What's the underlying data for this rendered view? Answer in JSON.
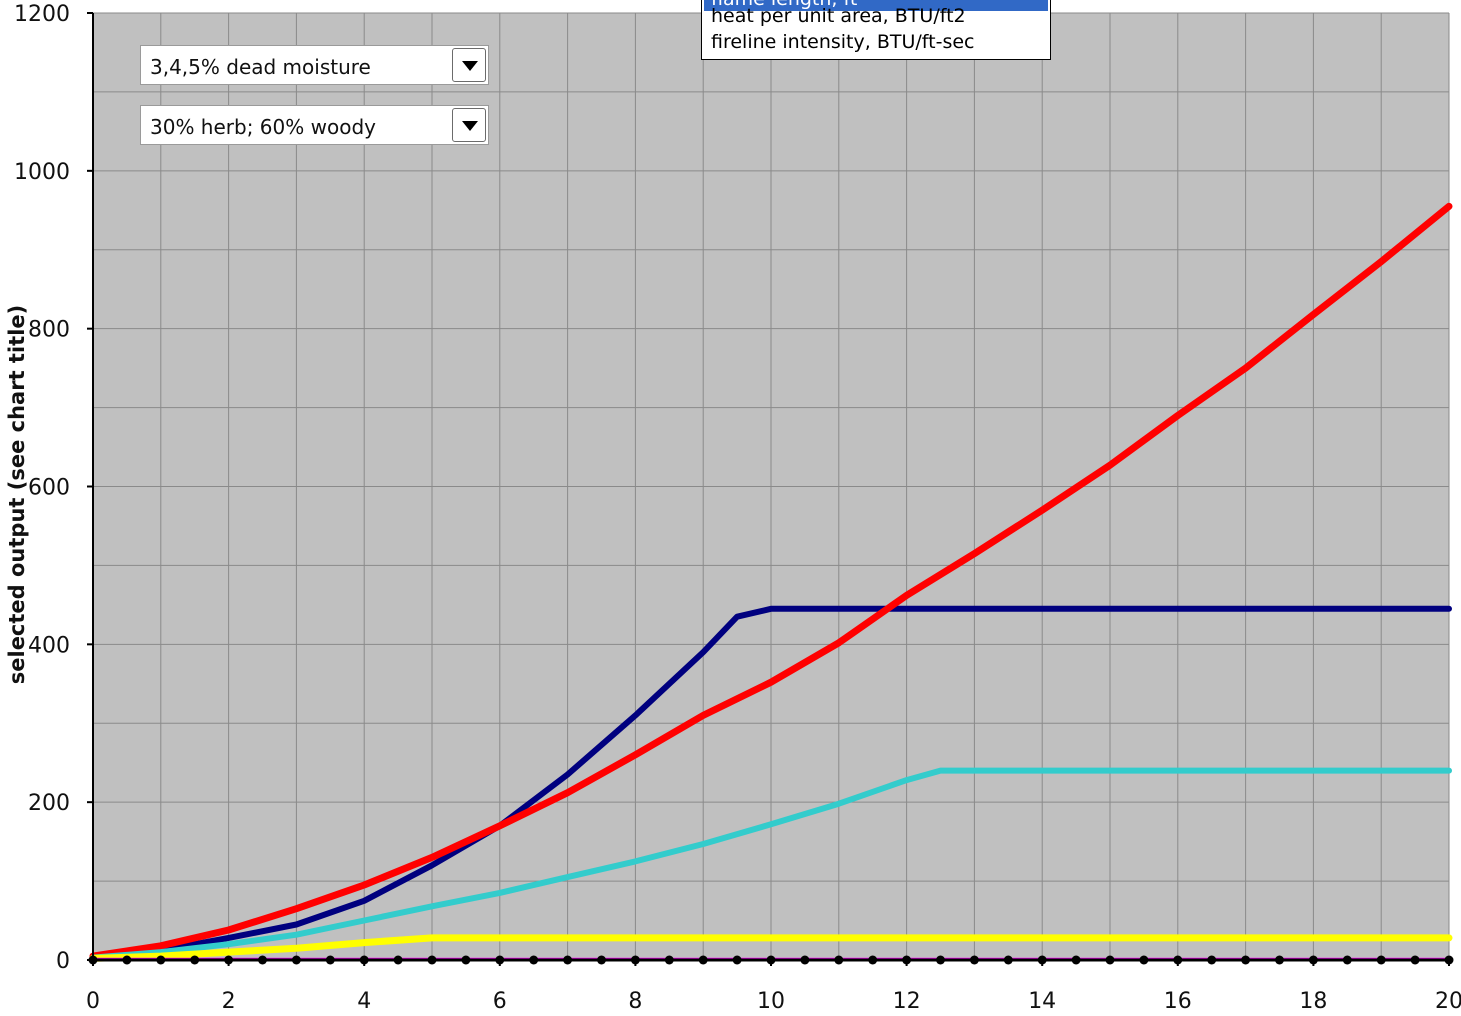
{
  "controls": {
    "moisture_select": "3,4,5% dead moisture",
    "herb_select": "30% herb; 60% woody"
  },
  "dropdown": {
    "options": [
      {
        "label": "flame length, ft",
        "selected": true
      },
      {
        "label": "heat per unit area, BTU/ft2",
        "selected": false
      },
      {
        "label": "fireline intensity, BTU/ft-sec",
        "selected": false
      }
    ]
  },
  "chart_data": {
    "type": "line",
    "title": "",
    "xlabel": "",
    "ylabel": "selected output  (see chart title)",
    "xlim": [
      0,
      20
    ],
    "ylim": [
      0,
      1200
    ],
    "xticks": [
      0,
      2,
      4,
      6,
      8,
      10,
      12,
      14,
      16,
      18,
      20
    ],
    "yticks": [
      0,
      200,
      400,
      600,
      800,
      1000,
      1200
    ],
    "grid": true,
    "plot_background": "#c0c0c0",
    "series": [
      {
        "color": "#00007f",
        "width": 6,
        "points": [
          [
            0,
            5
          ],
          [
            1,
            12
          ],
          [
            2,
            28
          ],
          [
            3,
            45
          ],
          [
            4,
            75
          ],
          [
            5,
            120
          ],
          [
            6,
            170
          ],
          [
            7,
            235
          ],
          [
            8,
            310
          ],
          [
            9,
            390
          ],
          [
            9.5,
            435
          ],
          [
            10,
            445
          ],
          [
            12,
            445
          ],
          [
            14,
            445
          ],
          [
            16,
            445
          ],
          [
            18,
            445
          ],
          [
            20,
            445
          ]
        ]
      },
      {
        "color": "#ff0000",
        "width": 7,
        "points": [
          [
            0,
            5
          ],
          [
            1,
            18
          ],
          [
            2,
            38
          ],
          [
            3,
            65
          ],
          [
            4,
            95
          ],
          [
            5,
            130
          ],
          [
            6,
            170
          ],
          [
            7,
            212
          ],
          [
            8,
            260
          ],
          [
            9,
            310
          ],
          [
            10,
            352
          ],
          [
            11,
            402
          ],
          [
            12,
            462
          ],
          [
            13,
            515
          ],
          [
            14,
            570
          ],
          [
            15,
            627
          ],
          [
            16,
            690
          ],
          [
            17,
            750
          ],
          [
            18,
            818
          ],
          [
            19,
            885
          ],
          [
            20,
            955
          ]
        ]
      },
      {
        "color": "#33cccc",
        "width": 6,
        "points": [
          [
            0,
            3
          ],
          [
            1,
            10
          ],
          [
            2,
            20
          ],
          [
            3,
            32
          ],
          [
            4,
            50
          ],
          [
            5,
            68
          ],
          [
            6,
            85
          ],
          [
            7,
            105
          ],
          [
            8,
            125
          ],
          [
            9,
            147
          ],
          [
            10,
            172
          ],
          [
            11,
            198
          ],
          [
            12,
            228
          ],
          [
            12.5,
            240
          ],
          [
            14,
            240
          ],
          [
            16,
            240
          ],
          [
            18,
            240
          ],
          [
            20,
            240
          ]
        ]
      },
      {
        "color": "#ffff00",
        "width": 7,
        "points": [
          [
            0,
            2
          ],
          [
            1,
            5
          ],
          [
            2,
            10
          ],
          [
            3,
            15
          ],
          [
            4,
            22
          ],
          [
            5,
            28
          ],
          [
            6,
            28
          ],
          [
            8,
            28
          ],
          [
            10,
            28
          ],
          [
            12,
            28
          ],
          [
            14,
            28
          ],
          [
            16,
            28
          ],
          [
            18,
            28
          ],
          [
            20,
            28
          ]
        ]
      },
      {
        "color": "#ff00ff",
        "width": 3,
        "points": [
          [
            0,
            1
          ],
          [
            20,
            1
          ]
        ]
      },
      {
        "color": "#000000",
        "width": 3,
        "marker": "circle",
        "points": [
          [
            0,
            0
          ],
          [
            0.5,
            0
          ],
          [
            1,
            0
          ],
          [
            1.5,
            0
          ],
          [
            2,
            0
          ],
          [
            2.5,
            0
          ],
          [
            3,
            0
          ],
          [
            3.5,
            0
          ],
          [
            4,
            0
          ],
          [
            4.5,
            0
          ],
          [
            5,
            0
          ],
          [
            5.5,
            0
          ],
          [
            6,
            0
          ],
          [
            6.5,
            0
          ],
          [
            7,
            0
          ],
          [
            7.5,
            0
          ],
          [
            8,
            0
          ],
          [
            8.5,
            0
          ],
          [
            9,
            0
          ],
          [
            9.5,
            0
          ],
          [
            10,
            0
          ],
          [
            10.5,
            0
          ],
          [
            11,
            0
          ],
          [
            11.5,
            0
          ],
          [
            12,
            0
          ],
          [
            12.5,
            0
          ],
          [
            13,
            0
          ],
          [
            13.5,
            0
          ],
          [
            14,
            0
          ],
          [
            14.5,
            0
          ],
          [
            15,
            0
          ],
          [
            15.5,
            0
          ],
          [
            16,
            0
          ],
          [
            16.5,
            0
          ],
          [
            17,
            0
          ],
          [
            17.5,
            0
          ],
          [
            18,
            0
          ],
          [
            18.5,
            0
          ],
          [
            19,
            0
          ],
          [
            19.5,
            0
          ],
          [
            20,
            0
          ]
        ]
      }
    ]
  }
}
